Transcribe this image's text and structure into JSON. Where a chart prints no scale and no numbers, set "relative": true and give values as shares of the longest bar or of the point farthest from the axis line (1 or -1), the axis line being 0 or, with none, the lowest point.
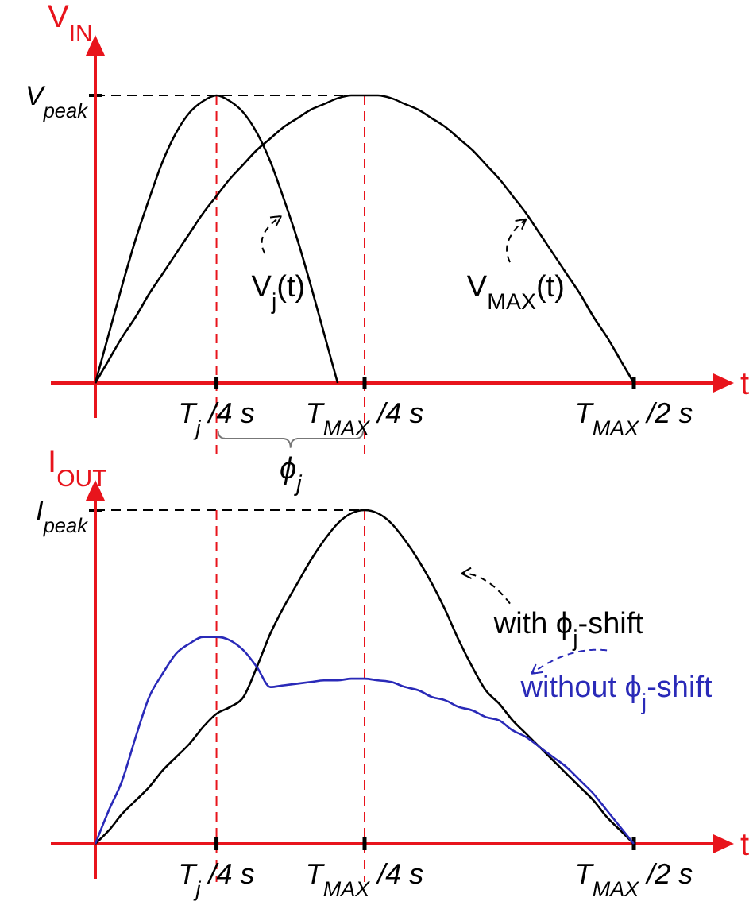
{
  "chart_data": [
    {
      "type": "line",
      "relative": true,
      "xlabel": "t",
      "ylabel": "V$_{IN}$",
      "categories": [
        null,
        null,
        null,
        null,
        null,
        null,
        null,
        null,
        null,
        "T$_{j}$ /4 s",
        null,
        null,
        null,
        null,
        null,
        null,
        null,
        null,
        null,
        null,
        "T$_{MAX}$ /4 s",
        null,
        null,
        null,
        null,
        null,
        null,
        null,
        null,
        null,
        null,
        null,
        null,
        null,
        null,
        null,
        null,
        null,
        null,
        null,
        "T$_{MAX}$ /2 s"
      ],
      "series": [
        {
          "name": "V$_{j}$(t)",
          "color": "#000000",
          "values": [
            0,
            0.17,
            0.34,
            0.5,
            0.64,
            0.77,
            0.87,
            0.94,
            0.98,
            1,
            0.98,
            0.94,
            0.87,
            0.77,
            0.64,
            0.5,
            0.34,
            0.17,
            0,
            null,
            null,
            null,
            null,
            null,
            null,
            null,
            null,
            null,
            null,
            null,
            null,
            null,
            null,
            null,
            null,
            null,
            null,
            null,
            null,
            null,
            null
          ]
        },
        {
          "name": "V$_{MAX}$(t)",
          "color": "#000000",
          "values": [
            0,
            0.08,
            0.16,
            0.23,
            0.31,
            0.38,
            0.45,
            0.52,
            0.59,
            0.65,
            0.71,
            0.76,
            0.81,
            0.85,
            0.89,
            0.92,
            0.95,
            0.97,
            0.99,
            1,
            1,
            1,
            0.99,
            0.97,
            0.95,
            0.92,
            0.89,
            0.85,
            0.81,
            0.76,
            0.71,
            0.65,
            0.59,
            0.52,
            0.45,
            0.38,
            0.31,
            0.23,
            0.16,
            0.08,
            0
          ]
        }
      ],
      "ref_lines": [
        {
          "axis": "y",
          "value": 1,
          "label": "V$_{peak}$",
          "color": "#000000",
          "line_style": "dashed"
        },
        {
          "axis": "x",
          "value": "T$_{j}$ /4 s",
          "color": "#e8141c",
          "line_style": "dashed"
        },
        {
          "axis": "x",
          "value": "T$_{MAX}$ /4 s",
          "color": "#e8141c",
          "line_style": "dashed"
        }
      ],
      "annotations": [
        "ϕ$_{j}$"
      ],
      "legend": "center"
    },
    {
      "type": "line",
      "relative": true,
      "xlabel": "t",
      "ylabel": "I$_{OUT}$",
      "categories": [
        null,
        null,
        null,
        null,
        null,
        null,
        null,
        null,
        null,
        "T$_{j}$ /4 s",
        null,
        null,
        null,
        null,
        null,
        null,
        null,
        null,
        null,
        null,
        "T$_{MAX}$ /4 s",
        null,
        null,
        null,
        null,
        null,
        null,
        null,
        null,
        null,
        null,
        null,
        null,
        null,
        null,
        null,
        null,
        null,
        null,
        null,
        "T$_{MAX}$ /2 s"
      ],
      "series": [
        {
          "name": "with ϕ$_{j}$-shift",
          "color": "#000000",
          "values": [
            0,
            0.04,
            0.09,
            0.13,
            0.17,
            0.22,
            0.26,
            0.3,
            0.35,
            0.39,
            0.41,
            0.44,
            0.53,
            0.63,
            0.71,
            0.78,
            0.85,
            0.91,
            0.96,
            0.99,
            1,
            0.99,
            0.96,
            0.91,
            0.85,
            0.78,
            0.7,
            0.61,
            0.53,
            0.46,
            0.42,
            0.37,
            0.33,
            0.29,
            0.25,
            0.21,
            0.17,
            0.13,
            0.08,
            0.04,
            0
          ]
        },
        {
          "name": "without ϕ$_{j}$-shift",
          "color": "#2a2ab8",
          "values": [
            0,
            0.1,
            0.19,
            0.32,
            0.44,
            0.51,
            0.57,
            0.6,
            0.62,
            0.62,
            0.61,
            0.58,
            0.53,
            0.47,
            0.475,
            0.48,
            0.485,
            0.49,
            0.49,
            0.495,
            0.495,
            0.49,
            0.485,
            0.47,
            0.46,
            0.44,
            0.43,
            0.41,
            0.4,
            0.38,
            0.37,
            0.34,
            0.32,
            0.29,
            0.26,
            0.23,
            0.19,
            0.15,
            0.1,
            0.05,
            0
          ]
        }
      ],
      "ref_lines": [
        {
          "axis": "y",
          "value": 1,
          "label": "I$_{peak}$",
          "color": "#000000",
          "line_style": "dashed"
        },
        {
          "axis": "x",
          "value": "T$_{j}$ /4 s",
          "color": "#e8141c",
          "line_style": "dashed"
        },
        {
          "axis": "x",
          "value": "T$_{MAX}$ /4 s",
          "color": "#e8141c",
          "line_style": "dashed"
        }
      ],
      "legend": "right"
    }
  ]
}
